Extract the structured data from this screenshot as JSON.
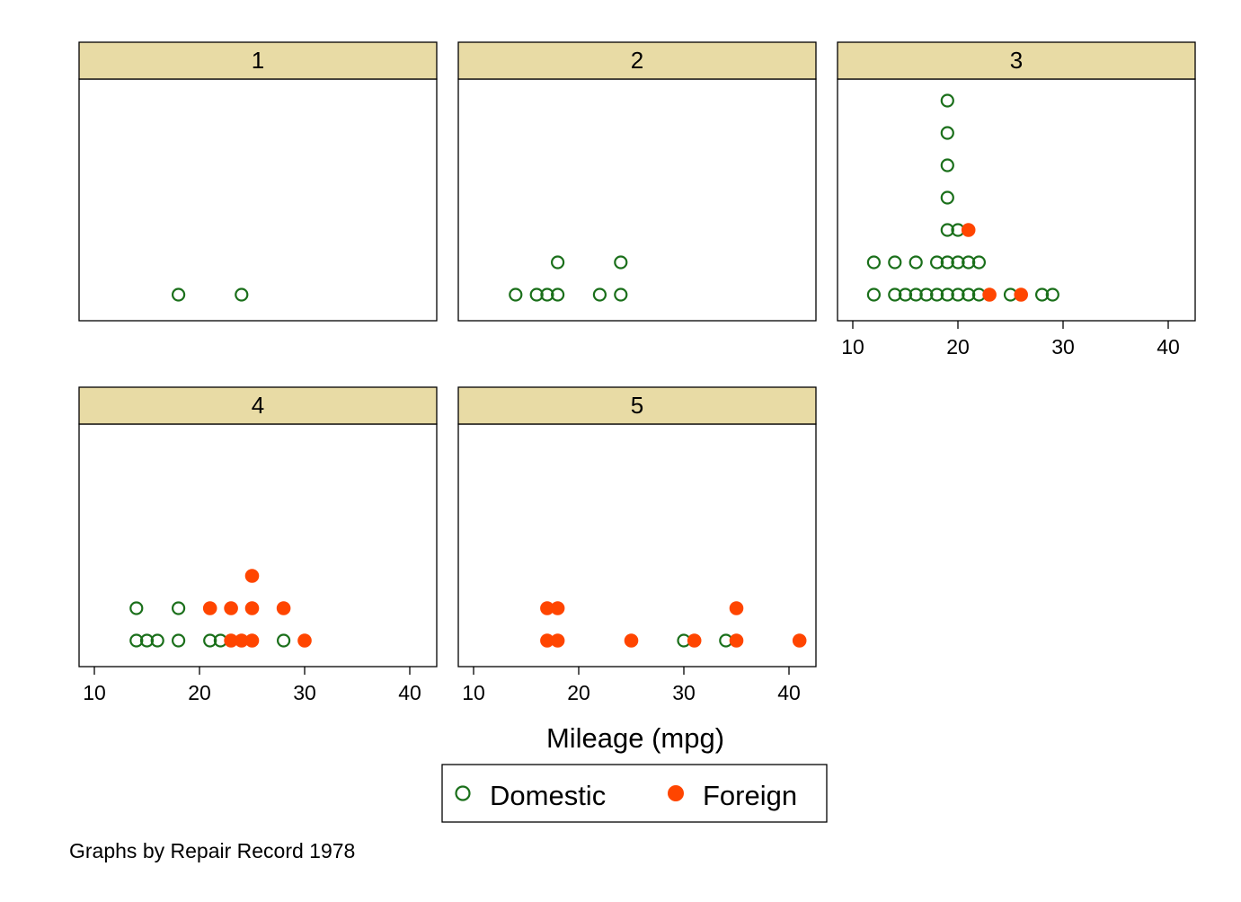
{
  "chart_data": {
    "type": "scatter",
    "style": "dot plot, stacked markers",
    "by_variable": "Repair Record 1978",
    "xlabel": "Mileage (mpg)",
    "xlim": [
      8,
      42
    ],
    "xticks": [
      10,
      20,
      30,
      40
    ],
    "grid": false,
    "legend_position": "bottom-center",
    "note": "Graphs by Repair Record 1978",
    "series": [
      {
        "name": "Domestic",
        "marker": "hollow-circle",
        "color": "#1a6f1a"
      },
      {
        "name": "Foreign",
        "marker": "filled-circle",
        "color": "#ff4500"
      }
    ],
    "panels": [
      {
        "label": "1",
        "points": [
          {
            "series": "Domestic",
            "x": 18,
            "level": 0
          },
          {
            "series": "Domestic",
            "x": 24,
            "level": 0
          }
        ]
      },
      {
        "label": "2",
        "points": [
          {
            "series": "Domestic",
            "x": 14,
            "level": 0
          },
          {
            "series": "Domestic",
            "x": 16,
            "level": 0
          },
          {
            "series": "Domestic",
            "x": 17,
            "level": 0
          },
          {
            "series": "Domestic",
            "x": 18,
            "level": 0
          },
          {
            "series": "Domestic",
            "x": 18,
            "level": 1
          },
          {
            "series": "Domestic",
            "x": 22,
            "level": 0
          },
          {
            "series": "Domestic",
            "x": 24,
            "level": 0
          },
          {
            "series": "Domestic",
            "x": 24,
            "level": 1
          }
        ]
      },
      {
        "label": "3",
        "points": [
          {
            "series": "Domestic",
            "x": 12,
            "level": 0
          },
          {
            "series": "Domestic",
            "x": 14,
            "level": 0
          },
          {
            "series": "Domestic",
            "x": 15,
            "level": 0
          },
          {
            "series": "Domestic",
            "x": 16,
            "level": 0
          },
          {
            "series": "Domestic",
            "x": 17,
            "level": 0
          },
          {
            "series": "Domestic",
            "x": 18,
            "level": 0
          },
          {
            "series": "Domestic",
            "x": 19,
            "level": 0
          },
          {
            "series": "Domestic",
            "x": 20,
            "level": 0
          },
          {
            "series": "Domestic",
            "x": 21,
            "level": 0
          },
          {
            "series": "Domestic",
            "x": 22,
            "level": 0
          },
          {
            "series": "Foreign",
            "x": 23,
            "level": 0
          },
          {
            "series": "Domestic",
            "x": 25,
            "level": 0
          },
          {
            "series": "Foreign",
            "x": 26,
            "level": 0
          },
          {
            "series": "Domestic",
            "x": 28,
            "level": 0
          },
          {
            "series": "Domestic",
            "x": 29,
            "level": 0
          },
          {
            "series": "Domestic",
            "x": 12,
            "level": 1
          },
          {
            "series": "Domestic",
            "x": 14,
            "level": 1
          },
          {
            "series": "Domestic",
            "x": 16,
            "level": 1
          },
          {
            "series": "Domestic",
            "x": 18,
            "level": 1
          },
          {
            "series": "Domestic",
            "x": 19,
            "level": 1
          },
          {
            "series": "Domestic",
            "x": 20,
            "level": 1
          },
          {
            "series": "Domestic",
            "x": 21,
            "level": 1
          },
          {
            "series": "Domestic",
            "x": 22,
            "level": 1
          },
          {
            "series": "Domestic",
            "x": 19,
            "level": 2
          },
          {
            "series": "Domestic",
            "x": 20,
            "level": 2
          },
          {
            "series": "Foreign",
            "x": 21,
            "level": 2
          },
          {
            "series": "Domestic",
            "x": 19,
            "level": 3
          },
          {
            "series": "Domestic",
            "x": 19,
            "level": 4
          },
          {
            "series": "Domestic",
            "x": 19,
            "level": 5
          },
          {
            "series": "Domestic",
            "x": 19,
            "level": 6
          }
        ]
      },
      {
        "label": "4",
        "points": [
          {
            "series": "Domestic",
            "x": 14,
            "level": 0
          },
          {
            "series": "Domestic",
            "x": 15,
            "level": 0
          },
          {
            "series": "Domestic",
            "x": 16,
            "level": 0
          },
          {
            "series": "Domestic",
            "x": 18,
            "level": 0
          },
          {
            "series": "Domestic",
            "x": 21,
            "level": 0
          },
          {
            "series": "Domestic",
            "x": 22,
            "level": 0
          },
          {
            "series": "Foreign",
            "x": 23,
            "level": 0
          },
          {
            "series": "Foreign",
            "x": 24,
            "level": 0
          },
          {
            "series": "Foreign",
            "x": 25,
            "level": 0
          },
          {
            "series": "Domestic",
            "x": 28,
            "level": 0
          },
          {
            "series": "Foreign",
            "x": 30,
            "level": 0
          },
          {
            "series": "Domestic",
            "x": 14,
            "level": 1
          },
          {
            "series": "Domestic",
            "x": 18,
            "level": 1
          },
          {
            "series": "Foreign",
            "x": 21,
            "level": 1
          },
          {
            "series": "Foreign",
            "x": 23,
            "level": 1
          },
          {
            "series": "Foreign",
            "x": 25,
            "level": 1
          },
          {
            "series": "Foreign",
            "x": 28,
            "level": 1
          },
          {
            "series": "Foreign",
            "x": 25,
            "level": 2
          }
        ]
      },
      {
        "label": "5",
        "points": [
          {
            "series": "Foreign",
            "x": 17,
            "level": 0
          },
          {
            "series": "Foreign",
            "x": 18,
            "level": 0
          },
          {
            "series": "Foreign",
            "x": 25,
            "level": 0
          },
          {
            "series": "Domestic",
            "x": 30,
            "level": 0
          },
          {
            "series": "Foreign",
            "x": 31,
            "level": 0
          },
          {
            "series": "Domestic",
            "x": 34,
            "level": 0
          },
          {
            "series": "Foreign",
            "x": 35,
            "level": 0
          },
          {
            "series": "Foreign",
            "x": 41,
            "level": 0
          },
          {
            "series": "Foreign",
            "x": 17,
            "level": 1
          },
          {
            "series": "Foreign",
            "x": 18,
            "level": 1
          },
          {
            "series": "Foreign",
            "x": 35,
            "level": 1
          }
        ]
      }
    ]
  }
}
